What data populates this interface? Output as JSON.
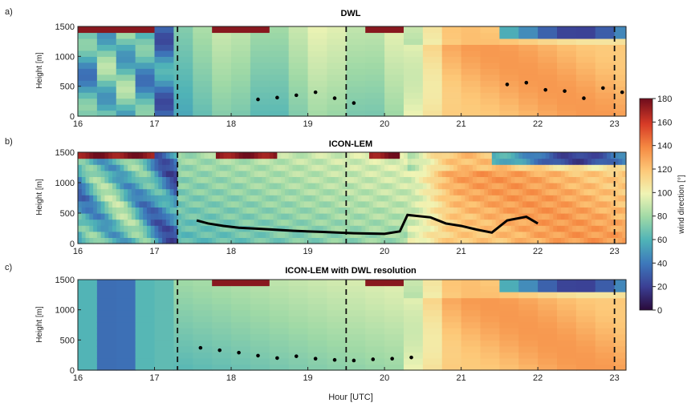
{
  "chart_data": [
    {
      "type": "heatmap",
      "panel_label": "a)",
      "title": "DWL",
      "ylabel": "Height [m]",
      "xlim": [
        16,
        23.15
      ],
      "ylim": [
        0,
        1500
      ],
      "xticks": [
        "16",
        "17",
        "18",
        "19",
        "20",
        "21",
        "22",
        "23"
      ],
      "yticks": [
        "0",
        "500",
        "1000",
        "1500"
      ],
      "cell_width_h": 0.25,
      "dashed_lines_x": [
        17.3,
        19.5,
        23.0
      ],
      "boundary_layer_height_points": [
        {
          "x": 18.35,
          "y": 280
        },
        {
          "x": 18.6,
          "y": 310
        },
        {
          "x": 18.85,
          "y": 350
        },
        {
          "x": 19.1,
          "y": 400
        },
        {
          "x": 19.35,
          "y": 300
        },
        {
          "x": 19.6,
          "y": 220
        },
        {
          "x": 21.6,
          "y": 530
        },
        {
          "x": 21.85,
          "y": 560
        },
        {
          "x": 22.1,
          "y": 440
        },
        {
          "x": 22.35,
          "y": 420
        },
        {
          "x": 22.6,
          "y": 300
        },
        {
          "x": 22.85,
          "y": 470
        },
        {
          "x": 23.1,
          "y": 400
        }
      ]
    },
    {
      "type": "heatmap",
      "panel_label": "b)",
      "title": "ICON-LEM",
      "ylabel": "Height [m]",
      "xlim": [
        16,
        23.15
      ],
      "ylim": [
        0,
        1500
      ],
      "xticks": [
        "16",
        "17",
        "18",
        "19",
        "20",
        "21",
        "22",
        "23"
      ],
      "yticks": [
        "0",
        "500",
        "1000",
        "1500"
      ],
      "cell_width_h": 0.05,
      "dashed_lines_x": [
        17.3,
        19.5,
        23.0
      ],
      "boundary_layer_height_line": [
        {
          "x": 17.55,
          "y": 380
        },
        {
          "x": 17.7,
          "y": 330
        },
        {
          "x": 17.9,
          "y": 290
        },
        {
          "x": 18.1,
          "y": 260
        },
        {
          "x": 18.4,
          "y": 240
        },
        {
          "x": 18.8,
          "y": 210
        },
        {
          "x": 19.2,
          "y": 190
        },
        {
          "x": 19.6,
          "y": 170
        },
        {
          "x": 20.0,
          "y": 160
        },
        {
          "x": 20.2,
          "y": 200
        },
        {
          "x": 20.3,
          "y": 470
        },
        {
          "x": 20.6,
          "y": 430
        },
        {
          "x": 20.8,
          "y": 330
        },
        {
          "x": 21.0,
          "y": 290
        },
        {
          "x": 21.2,
          "y": 230
        },
        {
          "x": 21.4,
          "y": 180
        },
        {
          "x": 21.6,
          "y": 380
        },
        {
          "x": 21.85,
          "y": 440
        },
        {
          "x": 22.0,
          "y": 330
        }
      ]
    },
    {
      "type": "heatmap",
      "panel_label": "c)",
      "title": "ICON-LEM with DWL resolution",
      "ylabel": "Height [m]",
      "xlabel": "Hour [UTC]",
      "xlim": [
        16,
        23.15
      ],
      "ylim": [
        0,
        1500
      ],
      "xticks": [
        "16",
        "17",
        "18",
        "19",
        "20",
        "21",
        "22",
        "23"
      ],
      "yticks": [
        "0",
        "500",
        "1000",
        "1500"
      ],
      "cell_width_h": 0.25,
      "dashed_lines_x": [
        17.3,
        19.5,
        23.0
      ],
      "boundary_layer_height_points": [
        {
          "x": 17.6,
          "y": 370
        },
        {
          "x": 17.85,
          "y": 330
        },
        {
          "x": 18.1,
          "y": 290
        },
        {
          "x": 18.35,
          "y": 240
        },
        {
          "x": 18.6,
          "y": 200
        },
        {
          "x": 18.85,
          "y": 230
        },
        {
          "x": 19.1,
          "y": 190
        },
        {
          "x": 19.35,
          "y": 170
        },
        {
          "x": 19.6,
          "y": 160
        },
        {
          "x": 19.85,
          "y": 180
        },
        {
          "x": 20.1,
          "y": 190
        },
        {
          "x": 20.35,
          "y": 210
        }
      ]
    }
  ],
  "colorbar": {
    "label": "wind direction [°]",
    "range": [
      0,
      180
    ],
    "ticks": [
      "0",
      "20",
      "40",
      "60",
      "80",
      "100",
      "120",
      "140",
      "160",
      "180"
    ],
    "colors": [
      "#2a0a3a",
      "#3b3f94",
      "#3d78bb",
      "#4fb3b7",
      "#9fd9a6",
      "#f0f4b4",
      "#fdc878",
      "#f58942",
      "#d73b27",
      "#6e0c1c"
    ]
  }
}
